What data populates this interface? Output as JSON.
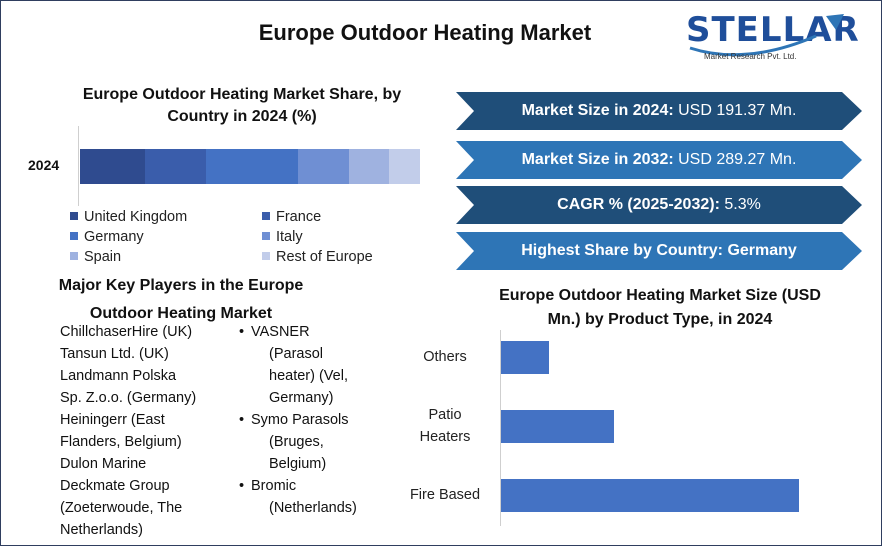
{
  "header": {
    "title": "Europe Outdoor Heating Market",
    "logo_text": "STELLAR",
    "logo_subtext": "Market Research Pvt. Ltd."
  },
  "share_chart": {
    "title_line1": "Europe Outdoor Heating Market Share, by",
    "title_line2": "Country in 2024 (%)"
  },
  "key_players": {
    "title_line1": "Major Key Players in the Europe",
    "title_line2": "Outdoor Heating Market",
    "plain": [
      "ChillchaserHire (UK)",
      "Tansun Ltd. (UK)",
      "Landmann Polska",
      "Sp. Z.o.o. (Germany)",
      "Heiningerr (East",
      "Flanders, Belgium)",
      "Dulon Marine",
      "Deckmate Group",
      "(Zoeterwoude, The",
      "Netherlands)"
    ],
    "bulleted": [
      {
        "bullet": "•",
        "lines": [
          "VASNER",
          "(Parasol",
          "heater) (Vel,",
          "Germany)"
        ]
      },
      {
        "bullet": "•",
        "lines": [
          "Symo Parasols",
          "(Bruges,",
          "Belgium)"
        ]
      },
      {
        "bullet": "•",
        "lines": [
          "Bromic",
          "(Netherlands)"
        ]
      }
    ]
  },
  "stats": [
    {
      "label": "Market Size in 2024:",
      "value": " USD 191.37 Mn.",
      "color": "#1f4e79"
    },
    {
      "label": "Market Size in 2032:",
      "value": " USD 289.27 Mn.",
      "color": "#2e75b6"
    },
    {
      "label": "CAGR % (2025-2032):",
      "value": " 5.3%",
      "color": "#1f4e79"
    },
    {
      "label": "Highest Share by Country: Germany",
      "value": "",
      "color": "#2e75b6"
    }
  ],
  "size_chart": {
    "title_line1": "Europe Outdoor Heating Market Size (USD",
    "title_line2": "Mn.) by Product Type, in 2024"
  },
  "chart_data": [
    {
      "type": "bar",
      "orientation": "horizontal-stacked",
      "title": "Europe Outdoor Heating Market Share, by Country in 2024 (%)",
      "categories": [
        "2024"
      ],
      "series": [
        {
          "name": "United Kingdom",
          "values": [
            19
          ],
          "color": "#2f4b8f"
        },
        {
          "name": "France",
          "values": [
            18
          ],
          "color": "#3a5dab"
        },
        {
          "name": "Germany",
          "values": [
            27
          ],
          "color": "#4472c4"
        },
        {
          "name": "Italy",
          "values": [
            15
          ],
          "color": "#6f8fd3"
        },
        {
          "name": "Spain",
          "values": [
            12
          ],
          "color": "#9fb2e0"
        },
        {
          "name": "Rest of Europe",
          "values": [
            9
          ],
          "color": "#c2cdea"
        }
      ],
      "xlim": [
        0,
        100
      ],
      "legend": "bottom",
      "grid": false
    },
    {
      "type": "bar",
      "orientation": "horizontal",
      "title": "Europe Outdoor Heating Market Size (USD Mn.) by Product Type, in 2024",
      "categories": [
        "Others",
        "Patio Heaters",
        "Fire Based"
      ],
      "category_lines": [
        [
          "Others"
        ],
        [
          "Patio",
          "Heaters"
        ],
        [
          "Fire Based"
        ]
      ],
      "values": [
        16,
        38,
        100
      ],
      "color": "#4472c4",
      "xlim": [
        0,
        100
      ],
      "grid": false
    }
  ]
}
